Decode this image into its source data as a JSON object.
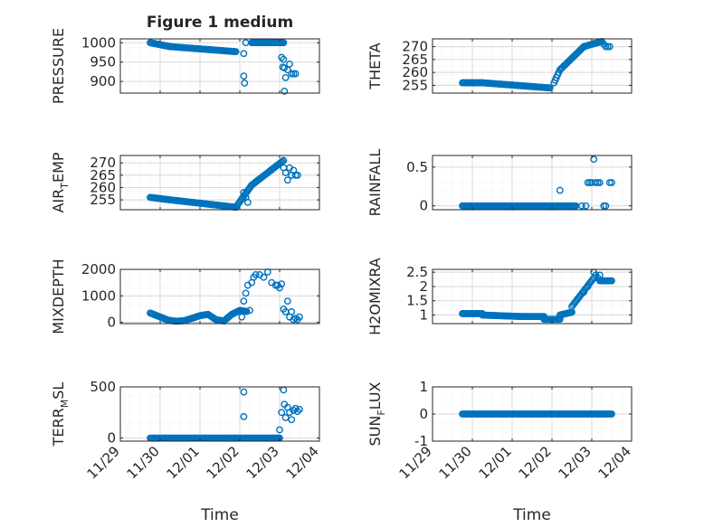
{
  "chart_data": {
    "type": "scatter",
    "title": "Figure 1 medium",
    "xlabel": "Time",
    "xticks": [
      "11/29",
      "11/30",
      "12/01",
      "12/02",
      "12/03",
      "12/04"
    ],
    "xlim": [
      0,
      5
    ],
    "colors": {
      "marker": "#0072bd",
      "axis": "#262626",
      "grid": "#d9d9d9",
      "background": "#ffffff"
    },
    "grid": true,
    "panels": [
      {
        "ylabel": "PRESSURE",
        "ylim": [
          870,
          1010
        ],
        "yticks": [
          900,
          950,
          1000
        ],
        "segments": [
          {
            "x0": 0.75,
            "x1": 1.25,
            "y0": 1000,
            "y1": 990
          },
          {
            "x0": 1.25,
            "x1": 2.9,
            "y0": 990,
            "y1": 977
          },
          {
            "x0": 3.3,
            "x1": 4.1,
            "y0": 1000,
            "y1": 1000
          }
        ],
        "points": [
          [
            3.1,
            972
          ],
          [
            3.1,
            914
          ],
          [
            3.12,
            896
          ],
          [
            3.15,
            1000
          ],
          [
            4.05,
            962
          ],
          [
            4.08,
            937
          ],
          [
            4.1,
            957
          ],
          [
            4.12,
            935
          ],
          [
            4.15,
            910
          ],
          [
            4.2,
            930
          ],
          [
            4.25,
            945
          ],
          [
            4.3,
            920
          ],
          [
            4.35,
            920
          ],
          [
            4.4,
            920
          ],
          [
            4.12,
            875
          ]
        ]
      },
      {
        "ylabel": "THETA",
        "ylim": [
          252,
          273
        ],
        "yticks": [
          255,
          260,
          265,
          270
        ],
        "segments": [
          {
            "x0": 0.75,
            "x1": 1.25,
            "y0": 256,
            "y1": 256
          },
          {
            "x0": 1.25,
            "x1": 2.95,
            "y0": 256,
            "y1": 254
          },
          {
            "x0": 3.05,
            "x1": 3.2,
            "y0": 256,
            "y1": 261
          },
          {
            "x0": 3.2,
            "x1": 3.8,
            "y0": 261,
            "y1": 270
          },
          {
            "x0": 3.8,
            "x1": 4.25,
            "y0": 270,
            "y1": 272
          }
        ],
        "points": [
          [
            4.3,
            271
          ],
          [
            4.35,
            270
          ],
          [
            4.4,
            270
          ],
          [
            4.45,
            270
          ]
        ]
      },
      {
        "ylabel": "AIR_TEMP",
        "ylim": [
          251,
          273
        ],
        "yticks": [
          255,
          260,
          265,
          270
        ],
        "segments": [
          {
            "x0": 0.75,
            "x1": 1.25,
            "y0": 256,
            "y1": 255
          },
          {
            "x0": 1.25,
            "x1": 2.9,
            "y0": 255,
            "y1": 252
          },
          {
            "x0": 2.9,
            "x1": 3.3,
            "y0": 252,
            "y1": 261
          },
          {
            "x0": 3.3,
            "x1": 4.1,
            "y0": 261,
            "y1": 271
          }
        ],
        "points": [
          [
            3.1,
            258
          ],
          [
            3.15,
            256
          ],
          [
            3.2,
            254
          ],
          [
            4.1,
            268
          ],
          [
            4.15,
            266
          ],
          [
            4.2,
            263
          ],
          [
            4.25,
            268
          ],
          [
            4.3,
            265
          ],
          [
            4.35,
            267
          ],
          [
            4.4,
            265
          ],
          [
            4.45,
            265
          ]
        ]
      },
      {
        "ylabel": "RAINFALL",
        "ylim": [
          -0.05,
          0.65
        ],
        "yticks": [
          0,
          0.5
        ],
        "segments": [
          {
            "x0": 0.75,
            "x1": 3.15,
            "y0": 0,
            "y1": 0
          },
          {
            "x0": 3.2,
            "x1": 3.6,
            "y0": 0,
            "y1": 0
          }
        ],
        "points": [
          [
            3.2,
            0.2
          ],
          [
            3.75,
            0
          ],
          [
            3.85,
            0
          ],
          [
            3.9,
            0.3
          ],
          [
            3.95,
            0.3
          ],
          [
            4.0,
            0.3
          ],
          [
            4.05,
            0.6
          ],
          [
            4.1,
            0.3
          ],
          [
            4.15,
            0.3
          ],
          [
            4.2,
            0.3
          ],
          [
            4.3,
            0
          ],
          [
            4.35,
            0
          ],
          [
            4.45,
            0.3
          ],
          [
            4.5,
            0.3
          ]
        ]
      },
      {
        "ylabel": "MIXDEPTH",
        "ylim": [
          -50,
          2000
        ],
        "yticks": [
          0,
          1000,
          2000
        ],
        "polyline": [
          [
            0.75,
            350
          ],
          [
            1.0,
            200
          ],
          [
            1.2,
            80
          ],
          [
            1.4,
            40
          ],
          [
            1.6,
            60
          ],
          [
            1.8,
            150
          ],
          [
            2.0,
            250
          ],
          [
            2.2,
            300
          ],
          [
            2.4,
            100
          ],
          [
            2.6,
            50
          ],
          [
            2.8,
            300
          ],
          [
            3.0,
            450
          ],
          [
            3.2,
            400
          ]
        ],
        "points": [
          [
            3.05,
            200
          ],
          [
            3.1,
            800
          ],
          [
            3.15,
            1100
          ],
          [
            3.2,
            1400
          ],
          [
            3.25,
            450
          ],
          [
            3.3,
            1500
          ],
          [
            3.35,
            1700
          ],
          [
            3.4,
            1800
          ],
          [
            3.5,
            1800
          ],
          [
            3.6,
            1700
          ],
          [
            3.7,
            1900
          ],
          [
            3.8,
            1500
          ],
          [
            3.9,
            1400
          ],
          [
            3.95,
            1400
          ],
          [
            4.0,
            1300
          ],
          [
            4.05,
            1450
          ],
          [
            4.1,
            500
          ],
          [
            4.15,
            400
          ],
          [
            4.2,
            800
          ],
          [
            4.25,
            200
          ],
          [
            4.3,
            400
          ],
          [
            4.35,
            100
          ],
          [
            4.4,
            150
          ],
          [
            4.45,
            100
          ],
          [
            4.5,
            200
          ]
        ]
      },
      {
        "ylabel": "H2OMIXRA",
        "ylim": [
          0.7,
          2.6
        ],
        "yticks": [
          1,
          1.5,
          2,
          2.5
        ],
        "segments": [
          {
            "x0": 0.75,
            "x1": 1.25,
            "y0": 1.05,
            "y1": 1.05
          },
          {
            "x0": 1.25,
            "x1": 2.2,
            "y0": 1.0,
            "y1": 0.95
          },
          {
            "x0": 2.2,
            "x1": 2.8,
            "y0": 0.95,
            "y1": 0.95
          },
          {
            "x0": 2.8,
            "x1": 3.2,
            "y0": 0.85,
            "y1": 0.85
          },
          {
            "x0": 3.2,
            "x1": 3.5,
            "y0": 1.0,
            "y1": 1.1
          },
          {
            "x0": 3.5,
            "x1": 4.05,
            "y0": 1.3,
            "y1": 2.3
          },
          {
            "x0": 4.2,
            "x1": 4.5,
            "y0": 2.2,
            "y1": 2.2
          }
        ],
        "points": [
          [
            4.05,
            2.5
          ],
          [
            4.1,
            2.4
          ],
          [
            4.15,
            2.3
          ],
          [
            4.2,
            2.4
          ],
          [
            3.8,
            1.8
          ],
          [
            3.9,
            2.0
          ]
        ]
      },
      {
        "ylabel": "TERR_MSL",
        "ylim": [
          -30,
          500
        ],
        "yticks": [
          0,
          500
        ],
        "segments": [
          {
            "x0": 0.75,
            "x1": 4.0,
            "y0": 0,
            "y1": 0
          }
        ],
        "points": [
          [
            3.1,
            450
          ],
          [
            3.1,
            210
          ],
          [
            4.0,
            80
          ],
          [
            4.05,
            250
          ],
          [
            4.1,
            470
          ],
          [
            4.12,
            330
          ],
          [
            4.15,
            200
          ],
          [
            4.2,
            300
          ],
          [
            4.25,
            250
          ],
          [
            4.3,
            180
          ],
          [
            4.35,
            270
          ],
          [
            4.4,
            290
          ],
          [
            4.45,
            260
          ],
          [
            4.5,
            280
          ]
        ]
      },
      {
        "ylabel": "SUN_FLUX",
        "ylim": [
          -1,
          1
        ],
        "yticks": [
          -1,
          0,
          1
        ],
        "segments": [
          {
            "x0": 0.75,
            "x1": 4.5,
            "y0": 0,
            "y1": 0
          }
        ],
        "points": []
      }
    ]
  }
}
